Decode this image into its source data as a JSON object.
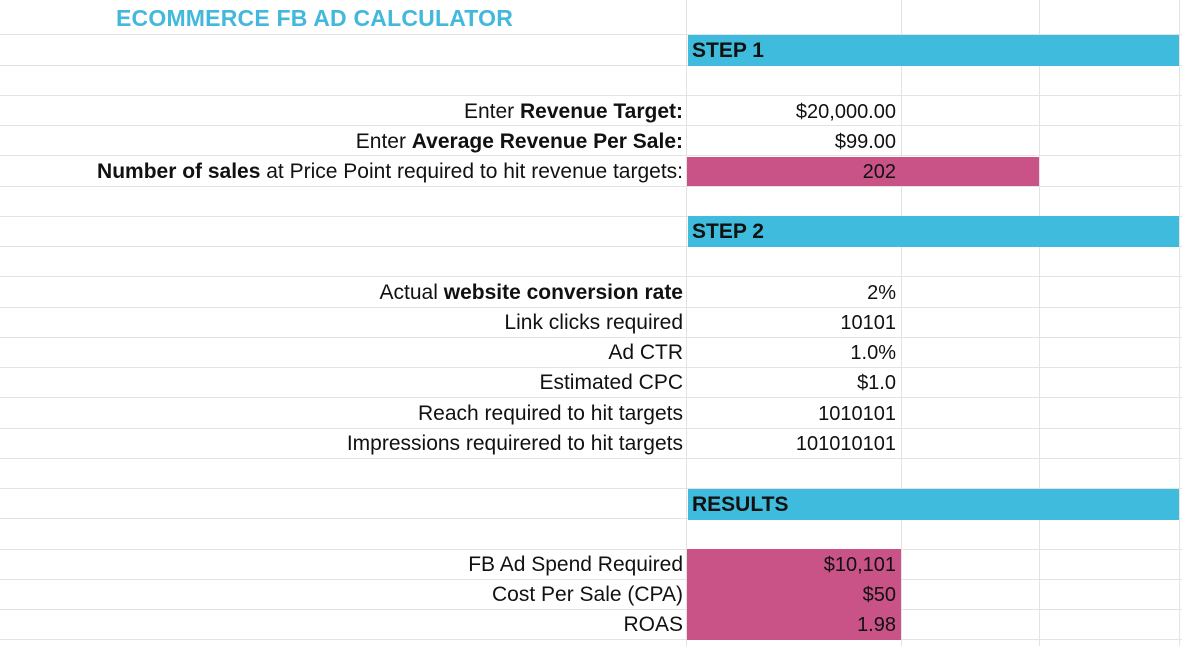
{
  "title": "ECOMMERCE FB AD CALCULATOR",
  "colors": {
    "title": "#42b9dc",
    "header_band": "#3fbcdd",
    "highlight": "#c95287"
  },
  "step1": {
    "header": "STEP 1",
    "rows": [
      {
        "prefix": "Enter ",
        "bold": "Revenue Target:",
        "suffix": "",
        "value": "$20,000.00"
      },
      {
        "prefix": "Enter ",
        "bold": "Average Revenue Per Sale:",
        "suffix": "",
        "value": "$99.00"
      },
      {
        "prefix": "",
        "bold": "Number of sales",
        "suffix": " at Price Point required to hit revenue targets:",
        "value": "202"
      }
    ]
  },
  "step2": {
    "header": "STEP 2",
    "rows": [
      {
        "prefix": "Actual ",
        "bold": "website conversion rate",
        "suffix": "",
        "value": "2%"
      },
      {
        "prefix": "Link clicks required",
        "bold": "",
        "suffix": "",
        "value": "10101"
      },
      {
        "prefix": "Ad CTR",
        "bold": "",
        "suffix": "",
        "value": "1.0%"
      },
      {
        "prefix": "Estimated CPC",
        "bold": "",
        "suffix": "",
        "value": "$1.0"
      },
      {
        "prefix": "Reach required to hit targets",
        "bold": "",
        "suffix": "",
        "value": "1010101"
      },
      {
        "prefix": "Impressions requirered to hit targets",
        "bold": "",
        "suffix": "",
        "value": "101010101"
      }
    ]
  },
  "results": {
    "header": "RESULTS",
    "rows": [
      {
        "prefix": "FB Ad Spend Required",
        "bold": "",
        "suffix": "",
        "value": "$10,101"
      },
      {
        "prefix": "Cost Per Sale (CPA)",
        "bold": "",
        "suffix": "",
        "value": "$50"
      },
      {
        "prefix": "ROAS",
        "bold": "",
        "suffix": "",
        "value": "1.98"
      }
    ]
  }
}
